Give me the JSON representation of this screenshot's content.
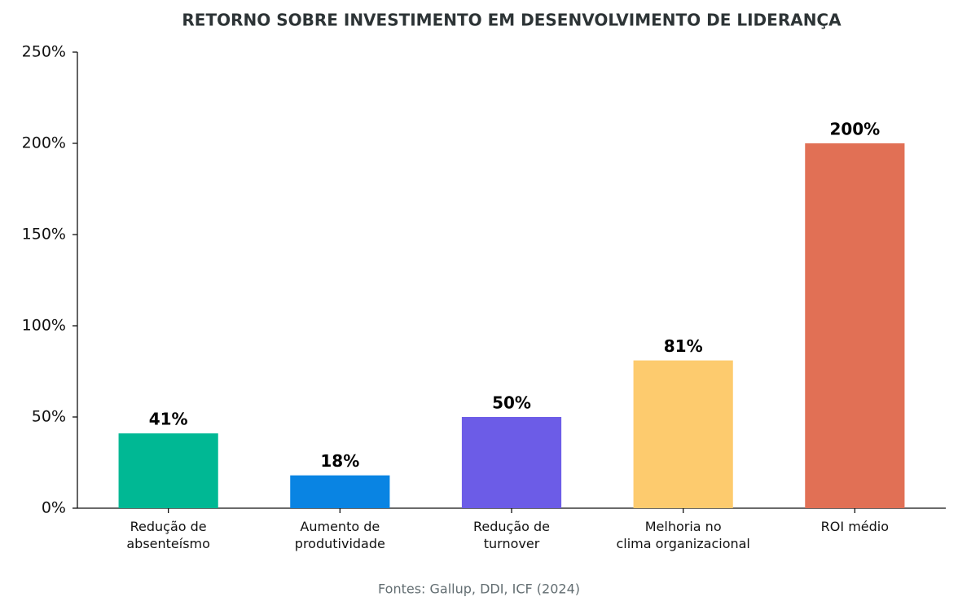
{
  "chart_data": {
    "type": "bar",
    "title": "RETORNO SOBRE INVESTIMENTO EM DESENVOLVIMENTO DE LIDERANÇA",
    "categories": [
      "Redução de\nabsenteísmo",
      "Aumento de\nprodutividade",
      "Redução de\nturnover",
      "Melhoria no\nclima organizacional",
      "ROI médio"
    ],
    "values": [
      41,
      18,
      50,
      81,
      200
    ],
    "value_labels": [
      "41%",
      "18%",
      "50%",
      "81%",
      "200%"
    ],
    "colors": [
      "#00b894",
      "#0984e3",
      "#6c5ce7",
      "#fdcb6e",
      "#e17055"
    ],
    "ylim": [
      0,
      250
    ],
    "yticks": [
      {
        "value": 0,
        "label": "0%"
      },
      {
        "value": 50,
        "label": "50%"
      },
      {
        "value": 100,
        "label": "100%"
      },
      {
        "value": 150,
        "label": "150%"
      },
      {
        "value": 200,
        "label": "200%"
      },
      {
        "value": 250,
        "label": "250%"
      }
    ],
    "grid": false,
    "source": "Fontes: Gallup, DDI, ICF (2024)"
  }
}
